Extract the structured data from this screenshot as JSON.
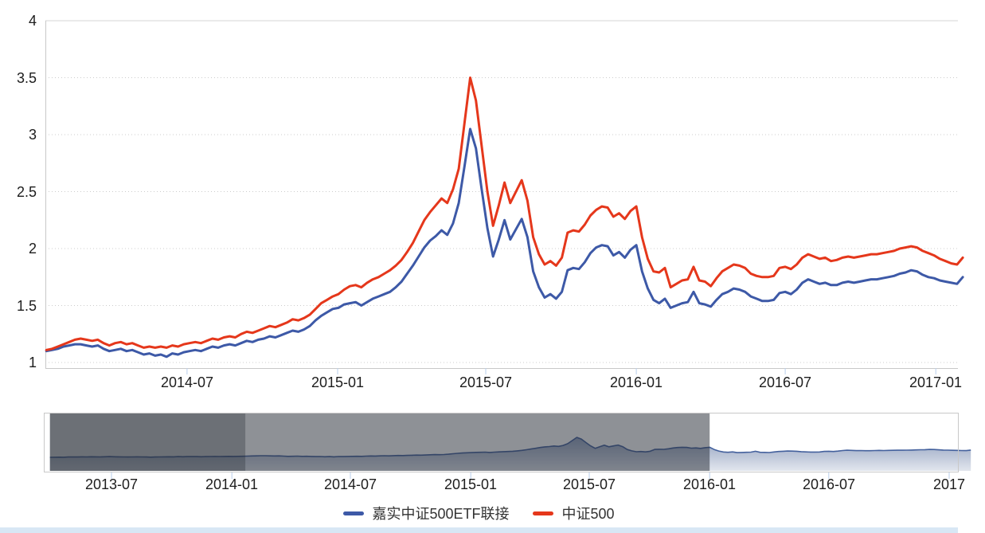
{
  "page": {
    "background": "#ffffff",
    "bottom_strip_color": "#d8e7f5"
  },
  "chart_data": {
    "type": "line",
    "title": "",
    "xlabel": "",
    "ylabel": "",
    "ylim": [
      1,
      4
    ],
    "grid": "dotted",
    "legend_position": "bottom",
    "colors": {
      "grid_line": "#cccccc",
      "axis_line": "#c8c8c8",
      "tick_mark": "#b9cfec",
      "label_text": "#1d1d1d",
      "navigator_line": "#44619d",
      "navigator_fill_top": "rgba(73,98,148,0.60)",
      "navigator_fill_bottom": "rgba(73,98,148,0.16)",
      "navigator_mask_dark": "rgba(38,44,53,0.68)",
      "navigator_mask_medium": "rgba(38,44,53,0.52)"
    },
    "y_ticks": [
      {
        "label": "1",
        "value": 1
      },
      {
        "label": "1.5",
        "value": 1.5
      },
      {
        "label": "2",
        "value": 2
      },
      {
        "label": "2.5",
        "value": 2.5
      },
      {
        "label": "3",
        "value": 3
      },
      {
        "label": "3.5",
        "value": 3.5
      },
      {
        "label": "4",
        "value": 4
      }
    ],
    "x_ticks": [
      {
        "label": "2014-07",
        "date": "2014-07-01"
      },
      {
        "label": "2015-01",
        "date": "2015-01-01"
      },
      {
        "label": "2015-07",
        "date": "2015-07-01"
      },
      {
        "label": "2016-01",
        "date": "2016-01-01"
      },
      {
        "label": "2016-07",
        "date": "2016-07-01"
      },
      {
        "label": "2017-01",
        "date": "2017-01-01"
      }
    ],
    "start_date": "2014-01-10",
    "step_days": 7,
    "series": [
      {
        "name": "嘉实中证500ETF联接",
        "color": "#3d59a7",
        "values": [
          1.1,
          1.11,
          1.12,
          1.14,
          1.15,
          1.16,
          1.16,
          1.15,
          1.14,
          1.15,
          1.12,
          1.1,
          1.11,
          1.12,
          1.1,
          1.11,
          1.09,
          1.07,
          1.08,
          1.06,
          1.07,
          1.05,
          1.08,
          1.07,
          1.09,
          1.1,
          1.11,
          1.1,
          1.12,
          1.14,
          1.13,
          1.15,
          1.16,
          1.15,
          1.17,
          1.19,
          1.18,
          1.2,
          1.21,
          1.23,
          1.22,
          1.24,
          1.26,
          1.28,
          1.27,
          1.29,
          1.32,
          1.37,
          1.41,
          1.44,
          1.47,
          1.48,
          1.51,
          1.52,
          1.53,
          1.5,
          1.53,
          1.56,
          1.58,
          1.6,
          1.62,
          1.66,
          1.71,
          1.78,
          1.85,
          1.93,
          2.01,
          2.07,
          2.11,
          2.16,
          2.12,
          2.22,
          2.4,
          2.72,
          3.05,
          2.88,
          2.52,
          2.18,
          1.93,
          2.08,
          2.25,
          2.08,
          2.17,
          2.26,
          2.1,
          1.8,
          1.66,
          1.57,
          1.6,
          1.56,
          1.62,
          1.81,
          1.83,
          1.82,
          1.88,
          1.96,
          2.01,
          2.03,
          2.02,
          1.94,
          1.97,
          1.92,
          1.99,
          2.03,
          1.8,
          1.65,
          1.55,
          1.52,
          1.56,
          1.48,
          1.5,
          1.52,
          1.53,
          1.62,
          1.52,
          1.51,
          1.49,
          1.55,
          1.6,
          1.62,
          1.65,
          1.64,
          1.62,
          1.58,
          1.56,
          1.54,
          1.54,
          1.55,
          1.61,
          1.62,
          1.6,
          1.64,
          1.7,
          1.73,
          1.71,
          1.69,
          1.7,
          1.68,
          1.68,
          1.7,
          1.71,
          1.7,
          1.71,
          1.72,
          1.73,
          1.73,
          1.74,
          1.75,
          1.76,
          1.78,
          1.79,
          1.81,
          1.8,
          1.77,
          1.75,
          1.74,
          1.72,
          1.71,
          1.7,
          1.69,
          1.75
        ]
      },
      {
        "name": "中证500",
        "color": "#e5371b",
        "values": [
          1.11,
          1.12,
          1.14,
          1.16,
          1.18,
          1.2,
          1.21,
          1.2,
          1.19,
          1.2,
          1.17,
          1.15,
          1.17,
          1.18,
          1.16,
          1.17,
          1.15,
          1.13,
          1.14,
          1.13,
          1.14,
          1.13,
          1.15,
          1.14,
          1.16,
          1.17,
          1.18,
          1.17,
          1.19,
          1.21,
          1.2,
          1.22,
          1.23,
          1.22,
          1.25,
          1.27,
          1.26,
          1.28,
          1.3,
          1.32,
          1.31,
          1.33,
          1.35,
          1.38,
          1.37,
          1.39,
          1.42,
          1.47,
          1.52,
          1.55,
          1.58,
          1.6,
          1.64,
          1.67,
          1.68,
          1.66,
          1.7,
          1.73,
          1.75,
          1.78,
          1.81,
          1.85,
          1.9,
          1.97,
          2.05,
          2.15,
          2.25,
          2.32,
          2.38,
          2.44,
          2.4,
          2.52,
          2.7,
          3.1,
          3.5,
          3.3,
          2.9,
          2.5,
          2.2,
          2.38,
          2.58,
          2.4,
          2.5,
          2.6,
          2.42,
          2.1,
          1.95,
          1.86,
          1.89,
          1.85,
          1.92,
          2.14,
          2.16,
          2.15,
          2.21,
          2.29,
          2.34,
          2.37,
          2.36,
          2.28,
          2.31,
          2.26,
          2.33,
          2.37,
          2.1,
          1.91,
          1.8,
          1.79,
          1.83,
          1.66,
          1.69,
          1.72,
          1.73,
          1.84,
          1.72,
          1.71,
          1.67,
          1.74,
          1.8,
          1.83,
          1.86,
          1.85,
          1.83,
          1.78,
          1.76,
          1.75,
          1.75,
          1.76,
          1.83,
          1.84,
          1.82,
          1.86,
          1.92,
          1.95,
          1.93,
          1.91,
          1.92,
          1.89,
          1.9,
          1.92,
          1.93,
          1.92,
          1.93,
          1.94,
          1.95,
          1.95,
          1.96,
          1.97,
          1.98,
          2.0,
          2.01,
          2.02,
          2.01,
          1.98,
          1.96,
          1.94,
          1.91,
          1.89,
          1.87,
          1.86,
          1.92
        ]
      }
    ],
    "navigator": {
      "series_shown": "嘉实中证500ETF联接",
      "start_date": "2013-03-29",
      "step_days": 7,
      "pre_values": [
        1.0,
        1.01,
        1.02,
        1.01,
        1.03,
        1.04,
        1.03,
        1.05,
        1.04,
        1.06,
        1.05,
        1.04,
        1.06,
        1.07,
        1.06,
        1.05,
        1.04,
        1.03,
        1.04,
        1.05,
        1.04,
        1.03,
        1.02,
        1.03,
        1.04,
        1.05,
        1.06,
        1.05,
        1.07,
        1.06,
        1.07,
        1.08,
        1.07,
        1.06,
        1.07,
        1.08,
        1.09,
        1.08,
        1.09,
        1.1,
        1.09
      ],
      "masks": {
        "dark_from": "2013-03-29",
        "dark_until": "2014-01-22",
        "medium_until": "2016-01-01"
      },
      "x_ticks": [
        {
          "label": "2013-07",
          "date": "2013-07-01"
        },
        {
          "label": "2014-01",
          "date": "2014-01-01"
        },
        {
          "label": "2014-07",
          "date": "2014-07-01"
        },
        {
          "label": "2015-01",
          "date": "2015-01-01"
        },
        {
          "label": "2015-07",
          "date": "2015-07-01"
        },
        {
          "label": "2016-01",
          "date": "2016-01-01"
        },
        {
          "label": "2016-07",
          "date": "2016-07-01"
        },
        {
          "label": "2017",
          "date": "2017-01-01"
        }
      ]
    }
  }
}
